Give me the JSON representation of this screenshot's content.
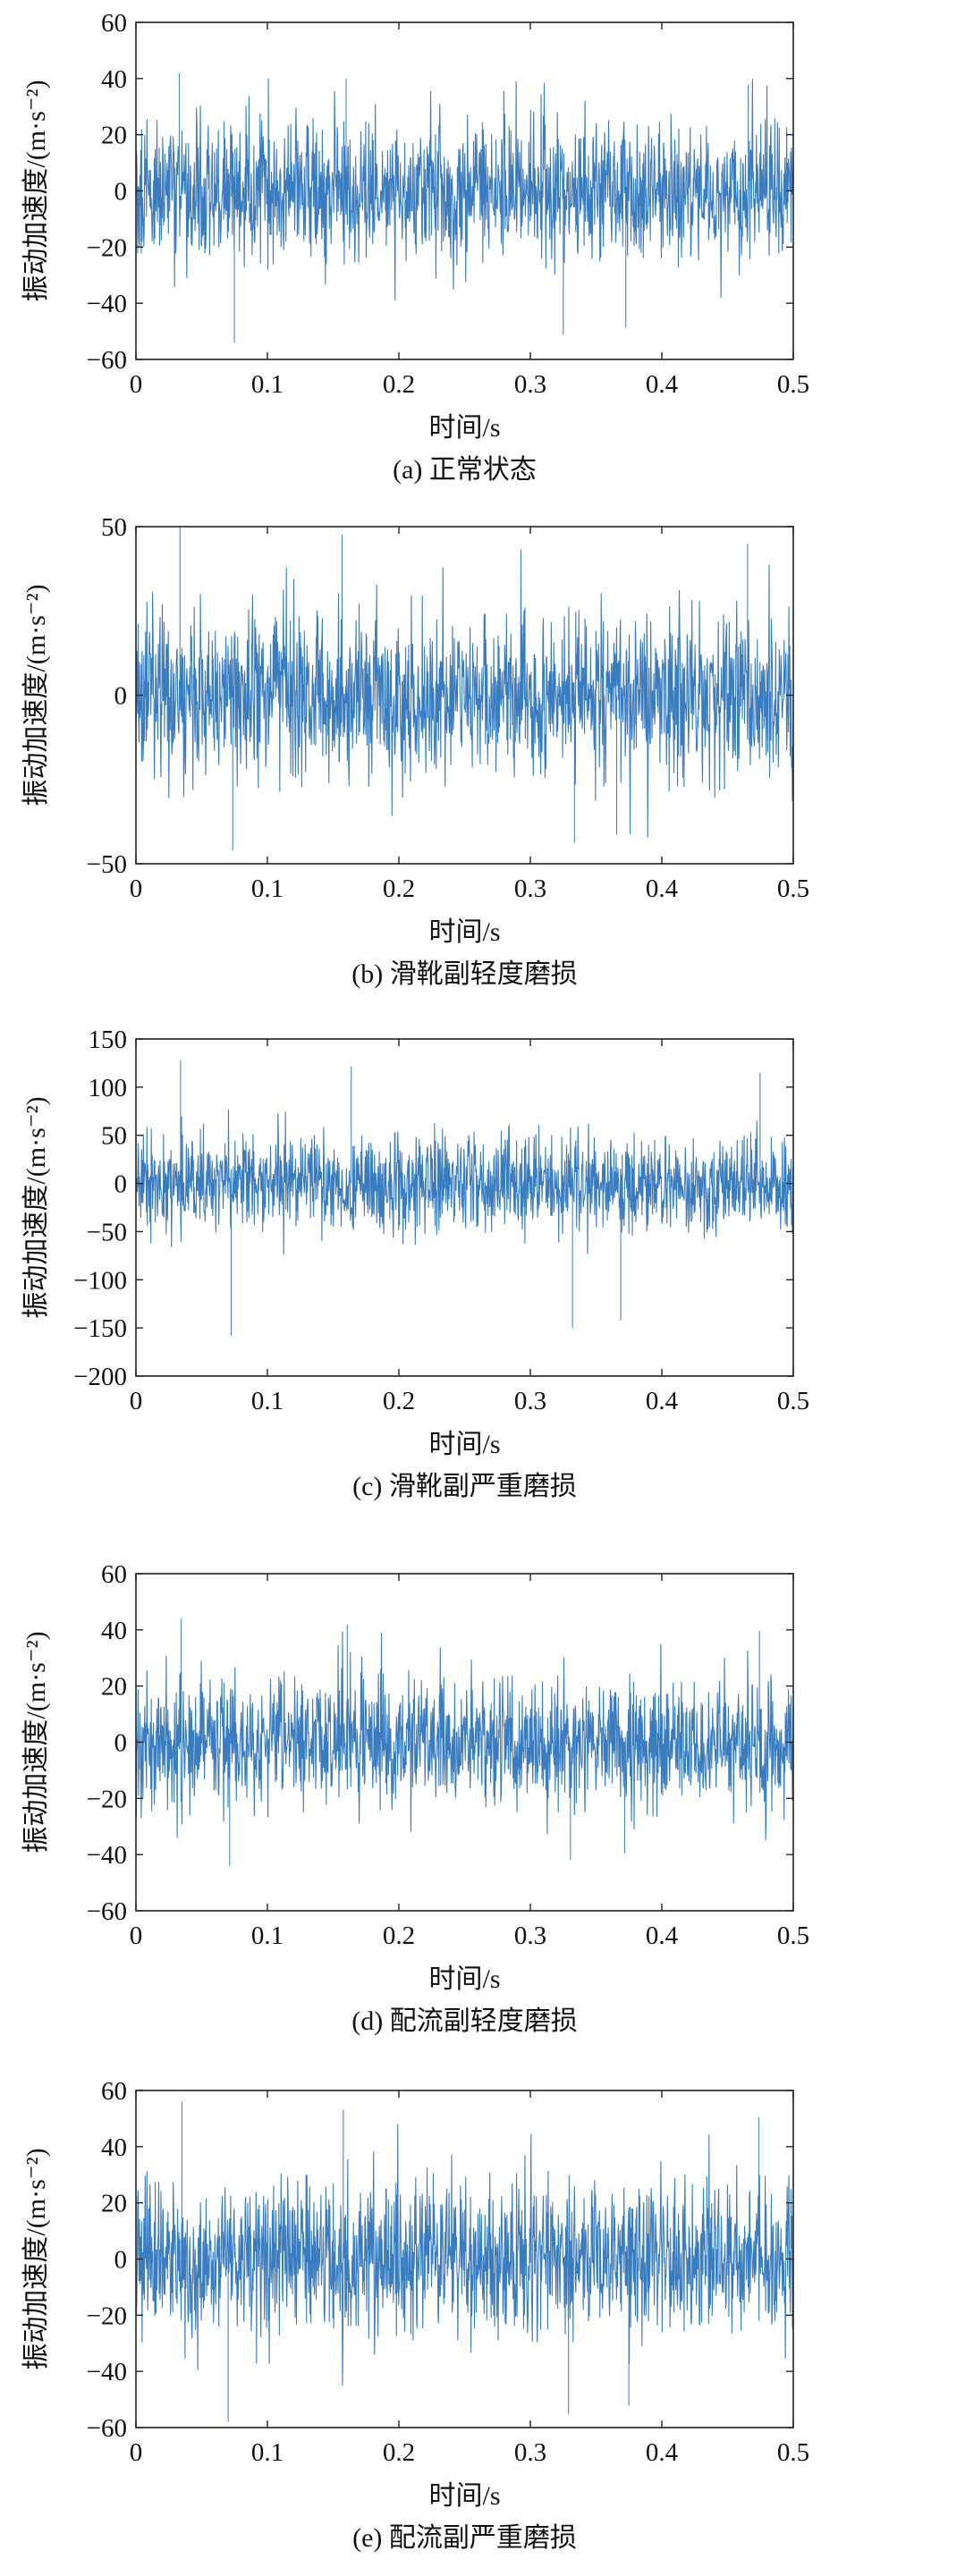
{
  "chart_data": [
    {
      "type": "line",
      "caption": "(a) 正常状态",
      "xlabel": "时间/s",
      "ylabel": "振动加速度/(m·s⁻²)",
      "xlim": [
        0,
        0.5
      ],
      "ylim": [
        -60,
        60
      ],
      "xticks": [
        "0",
        "0.1",
        "0.2",
        "0.3",
        "0.4",
        "0.5"
      ],
      "yticks": [
        "60",
        "40",
        "20",
        "0",
        "-20",
        "-40",
        "-60"
      ],
      "grid": false,
      "series": [
        {
          "style": "dense vibration signal",
          "mean": 0,
          "core_amplitude": 22,
          "peak_range": [
            -54,
            42
          ],
          "color": "#3A7CC0"
        }
      ]
    },
    {
      "type": "line",
      "caption": "(b) 滑靴副轻度磨损",
      "xlabel": "时间/s",
      "ylabel": "振动加速度/(m·s⁻²)",
      "xlim": [
        0,
        0.5
      ],
      "ylim": [
        -50,
        50
      ],
      "xticks": [
        "0",
        "0.1",
        "0.2",
        "0.3",
        "0.4",
        "0.5"
      ],
      "yticks": [
        "50",
        "0",
        "-50"
      ],
      "grid": false,
      "series": [
        {
          "style": "dense vibration signal",
          "mean": 0,
          "core_amplitude": 22,
          "peak_range": [
            -46,
            50
          ],
          "color": "#3A7CC0"
        }
      ]
    },
    {
      "type": "line",
      "caption": "(c) 滑靴副严重磨损",
      "xlabel": "时间/s",
      "ylabel": "振动加速度/(m·s⁻²)",
      "xlim": [
        0,
        0.5
      ],
      "ylim": [
        -200,
        150
      ],
      "xticks": [
        "0",
        "0.1",
        "0.2",
        "0.3",
        "0.4",
        "0.5"
      ],
      "yticks": [
        "150",
        "100",
        "50",
        "0",
        "-50",
        "-100",
        "-150",
        "-200"
      ],
      "grid": false,
      "series": [
        {
          "style": "dense vibration signal",
          "mean": 0,
          "core_amplitude": 45,
          "peak_range": [
            -158,
            128
          ],
          "color": "#3A7CC0"
        }
      ]
    },
    {
      "type": "line",
      "caption": "(d) 配流副轻度磨损",
      "xlabel": "时间/s",
      "ylabel": "振动加速度/(m·s⁻²)",
      "xlim": [
        0,
        0.5
      ],
      "ylim": [
        -60,
        60
      ],
      "xticks": [
        "0",
        "0.1",
        "0.2",
        "0.3",
        "0.4",
        "0.5"
      ],
      "yticks": [
        "60",
        "40",
        "20",
        "0",
        "-20",
        "-40",
        "-60"
      ],
      "grid": false,
      "series": [
        {
          "style": "dense vibration signal",
          "mean": 0,
          "core_amplitude": 20,
          "peak_range": [
            -44,
            44
          ],
          "color": "#3A7CC0"
        }
      ]
    },
    {
      "type": "line",
      "caption": "(e) 配流副严重磨损",
      "xlabel": "时间/s",
      "ylabel": "振动加速度/(m·s⁻²)",
      "xlim": [
        0,
        0.5
      ],
      "ylim": [
        -60,
        60
      ],
      "xticks": [
        "0",
        "0.1",
        "0.2",
        "0.3",
        "0.4",
        "0.5"
      ],
      "yticks": [
        "60",
        "40",
        "20",
        "0",
        "-20",
        "-40",
        "-60"
      ],
      "grid": false,
      "series": [
        {
          "style": "dense vibration signal",
          "mean": 0,
          "core_amplitude": 26,
          "peak_range": [
            -58,
            56
          ],
          "color": "#3A7CC0"
        }
      ]
    }
  ]
}
